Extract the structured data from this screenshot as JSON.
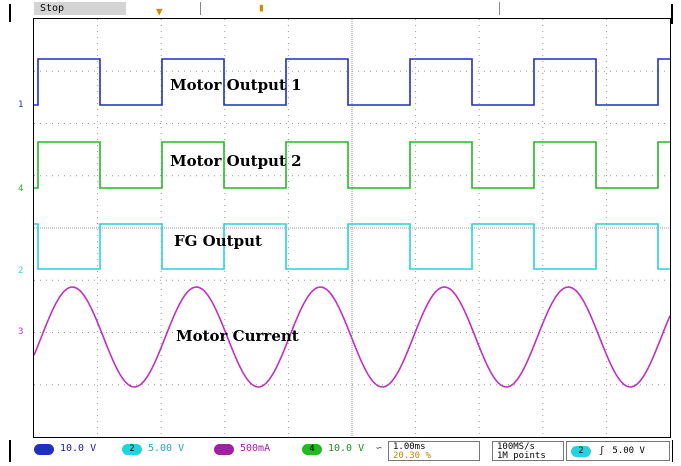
{
  "top": {
    "state": "Stop"
  },
  "channels": [
    {
      "marker": "1",
      "label": "Motor Output 1",
      "color": "#1f2fbf"
    },
    {
      "marker": "4",
      "label": "Motor Output 2",
      "color": "#25b825"
    },
    {
      "marker": "2",
      "label": "FG Output",
      "color": "#22d3df"
    },
    {
      "marker": "3",
      "label": "Motor Current",
      "color": "#c02fc2"
    }
  ],
  "status": {
    "ch1_scale": "10.0 V",
    "ch2_marker": "2",
    "ch2_scale": "5.00 V",
    "ch3_scale": "500mA",
    "ch4_marker": "4",
    "ch4_scale": "10.0 V",
    "timebase": "1.00ms",
    "trigger_pos": "20.30 %",
    "sample_rate": "100MS/s",
    "record_length": "1M points",
    "trigger_source": "2",
    "trigger_slope": "ʃ",
    "trigger_level": "5.00 V"
  }
}
